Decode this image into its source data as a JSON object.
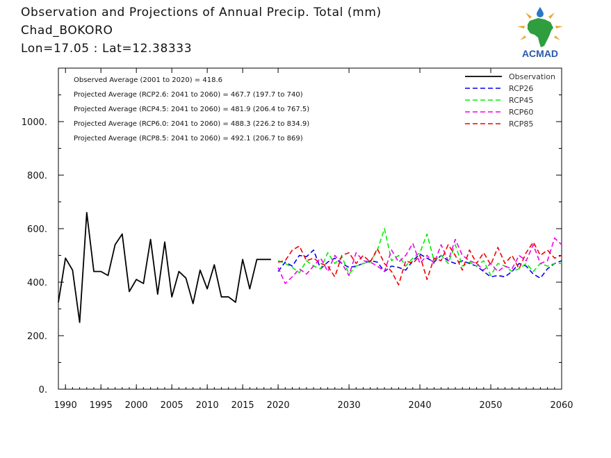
{
  "header": {
    "title": "Observation and Projections of Annual Precip. Total (mm)",
    "station": "Chad_BOKORO",
    "coords": "Lon=17.05 : Lat=12.38333"
  },
  "logo": {
    "text": "ACMAD",
    "colors": {
      "africa": "#2e9e3e",
      "rays": "#f2a531",
      "text": "#2b58a8",
      "drop": "#2b78c8"
    }
  },
  "chart_data": {
    "type": "line",
    "xlim": [
      1989,
      2060
    ],
    "ylim": [
      0,
      1200
    ],
    "x_ticks": [
      {
        "value": 1990,
        "label": "1990"
      },
      {
        "value": 1995,
        "label": "1995"
      },
      {
        "value": 2000,
        "label": "2000"
      },
      {
        "value": 2005,
        "label": "2005"
      },
      {
        "value": 2010,
        "label": "2010"
      },
      {
        "value": 2015,
        "label": "2015"
      },
      {
        "value": 2020,
        "label": "2020"
      },
      {
        "value": 2030,
        "label": "2030"
      },
      {
        "value": 2040,
        "label": "2040"
      },
      {
        "value": 2050,
        "label": "2050"
      },
      {
        "value": 2060,
        "label": "2060"
      }
    ],
    "y_ticks": [
      {
        "value": 0,
        "label": "0."
      },
      {
        "value": 200,
        "label": "200."
      },
      {
        "value": 400,
        "label": "400."
      },
      {
        "value": 600,
        "label": "600."
      },
      {
        "value": 800,
        "label": "800."
      },
      {
        "value": 1000,
        "label": "1000."
      }
    ],
    "legend_position": "top-right",
    "annotations": [
      "Observed Average (2001 to 2020) = 418.6",
      "Projected Average (RCP2.6: 2041 to 2060) = 467.7 (197.7 to 740)",
      "Projected Average (RCP4.5: 2041 to 2060) = 481.9 (206.4 to 767.5)",
      "Projected Average (RCP6.0: 2041 to 2060) = 488.3 (226.2 to 834.9)",
      "Projected Average (RCP8.5: 2041 to 2060) = 492.1 (206.7 to 869)"
    ],
    "series": [
      {
        "name": "Observation",
        "color": "#000000",
        "dashed": false,
        "x": [
          1989,
          1990,
          1991,
          1992,
          1993,
          1994,
          1995,
          1996,
          1997,
          1998,
          1999,
          2000,
          2001,
          2002,
          2003,
          2004,
          2005,
          2006,
          2007,
          2008,
          2009,
          2010,
          2011,
          2012,
          2013,
          2014,
          2015,
          2016,
          2017,
          2018,
          2019
        ],
        "values": [
          325,
          490,
          445,
          250,
          660,
          440,
          440,
          425,
          540,
          580,
          365,
          410,
          395,
          560,
          355,
          550,
          345,
          440,
          415,
          320,
          445,
          375,
          465,
          345,
          345,
          325,
          485,
          375,
          485,
          485,
          485
        ]
      },
      {
        "name": "RCP26",
        "color": "#0000ee",
        "dashed": true,
        "x": [
          2020,
          2021,
          2022,
          2023,
          2024,
          2025,
          2026,
          2027,
          2028,
          2029,
          2030,
          2031,
          2032,
          2033,
          2034,
          2035,
          2036,
          2037,
          2038,
          2039,
          2040,
          2041,
          2042,
          2043,
          2044,
          2045,
          2046,
          2047,
          2048,
          2049,
          2050,
          2051,
          2052,
          2053,
          2054,
          2055,
          2056,
          2057,
          2058,
          2059,
          2060
        ],
        "values": [
          440,
          475,
          460,
          500,
          495,
          520,
          450,
          475,
          490,
          470,
          455,
          460,
          470,
          480,
          475,
          440,
          460,
          455,
          445,
          480,
          505,
          490,
          475,
          500,
          480,
          470,
          480,
          470,
          460,
          440,
          420,
          425,
          420,
          440,
          470,
          460,
          430,
          415,
          450,
          470,
          480
        ]
      },
      {
        "name": "RCP45",
        "color": "#00ee00",
        "dashed": true,
        "x": [
          2020,
          2021,
          2022,
          2023,
          2024,
          2025,
          2026,
          2027,
          2028,
          2029,
          2030,
          2031,
          2032,
          2033,
          2034,
          2035,
          2036,
          2037,
          2038,
          2039,
          2040,
          2041,
          2042,
          2043,
          2044,
          2045,
          2046,
          2047,
          2048,
          2049,
          2050,
          2051,
          2052,
          2053,
          2054,
          2055,
          2056,
          2057,
          2058,
          2059,
          2060
        ],
        "values": [
          480,
          470,
          455,
          435,
          480,
          460,
          450,
          510,
          470,
          495,
          430,
          460,
          470,
          475,
          520,
          600,
          480,
          500,
          460,
          490,
          510,
          580,
          480,
          500,
          470,
          540,
          460,
          475,
          460,
          480,
          425,
          470,
          460,
          440,
          450,
          470,
          440,
          470,
          460,
          470,
          470
        ]
      },
      {
        "name": "RCP60",
        "color": "#ee00ee",
        "dashed": true,
        "x": [
          2020,
          2021,
          2022,
          2023,
          2024,
          2025,
          2026,
          2027,
          2028,
          2029,
          2030,
          2031,
          2032,
          2033,
          2034,
          2035,
          2036,
          2037,
          2038,
          2039,
          2040,
          2041,
          2042,
          2043,
          2044,
          2045,
          2046,
          2047,
          2048,
          2049,
          2050,
          2051,
          2052,
          2053,
          2054,
          2055,
          2056,
          2057,
          2058,
          2059,
          2060
        ],
        "values": [
          455,
          395,
          420,
          450,
          430,
          460,
          490,
          440,
          500,
          470,
          425,
          510,
          480,
          475,
          460,
          440,
          520,
          475,
          500,
          545,
          470,
          500,
          470,
          540,
          480,
          560,
          500,
          480,
          470,
          445,
          470,
          440,
          460,
          450,
          500,
          480,
          540,
          470,
          480,
          565,
          540
        ]
      },
      {
        "name": "RCP85",
        "color": "#ee0000",
        "dashed": true,
        "x": [
          2020,
          2021,
          2022,
          2023,
          2024,
          2025,
          2026,
          2027,
          2028,
          2029,
          2030,
          2031,
          2032,
          2033,
          2034,
          2035,
          2036,
          2037,
          2038,
          2039,
          2040,
          2041,
          2042,
          2043,
          2044,
          2045,
          2046,
          2047,
          2048,
          2049,
          2050,
          2051,
          2052,
          2053,
          2054,
          2055,
          2056,
          2057,
          2058,
          2059,
          2060
        ],
        "values": [
          475,
          480,
          520,
          535,
          480,
          490,
          470,
          460,
          420,
          500,
          510,
          470,
          500,
          475,
          525,
          470,
          440,
          390,
          480,
          470,
          500,
          410,
          490,
          480,
          540,
          500,
          445,
          520,
          470,
          510,
          465,
          530,
          470,
          500,
          450,
          510,
          550,
          500,
          520,
          490,
          500
        ]
      }
    ]
  }
}
